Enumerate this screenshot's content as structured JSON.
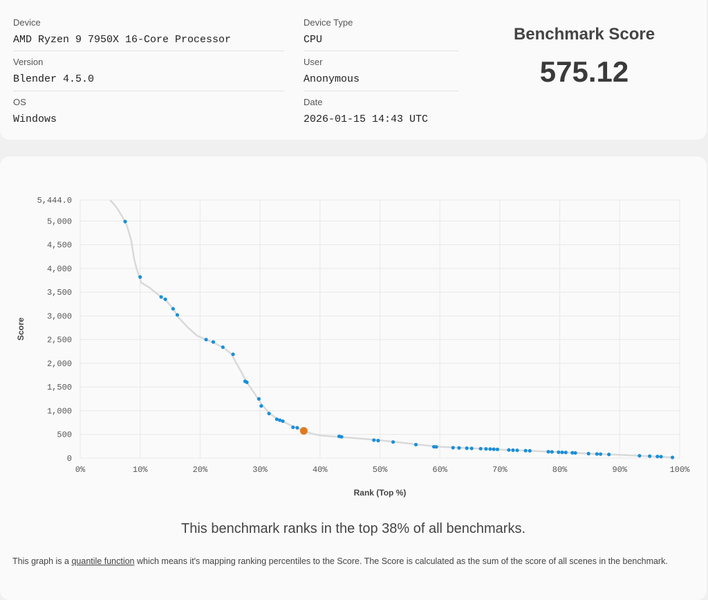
{
  "info": {
    "device": {
      "label": "Device",
      "value": "AMD Ryzen 9 7950X 16-Core Processor"
    },
    "version": {
      "label": "Version",
      "value": "Blender 4.5.0"
    },
    "os": {
      "label": "OS",
      "value": "Windows"
    },
    "device_type": {
      "label": "Device Type",
      "value": "CPU"
    },
    "user": {
      "label": "User",
      "value": "Anonymous"
    },
    "date": {
      "label": "Date",
      "value": "2026-01-15 14:43 UTC"
    }
  },
  "score": {
    "title": "Benchmark Score",
    "value": "575.12"
  },
  "colors": {
    "curve": "#d9d9d9",
    "points": "#1a8fd8",
    "highlight": "#e07b22",
    "grid": "#e8e8e8"
  },
  "chart_data": {
    "type": "scatter",
    "xlabel": "Rank (Top %)",
    "ylabel": "Score",
    "xlim": [
      0,
      100
    ],
    "ylim": [
      0,
      5444
    ],
    "x_ticks": [
      "0%",
      "10%",
      "20%",
      "30%",
      "40%",
      "50%",
      "60%",
      "70%",
      "80%",
      "90%",
      "100%"
    ],
    "y_ticks": [
      "0",
      "500",
      "1,000",
      "1,500",
      "2,000",
      "2,500",
      "3,000",
      "3,500",
      "4,000",
      "4,500",
      "5,000",
      "5,444.0"
    ],
    "y_tick_values": [
      0,
      500,
      1000,
      1500,
      2000,
      2500,
      3000,
      3500,
      4000,
      4500,
      5000,
      5444
    ],
    "grid": true,
    "curve": [
      [
        5,
        5444
      ],
      [
        6,
        5300
      ],
      [
        7,
        5100
      ],
      [
        7.8,
        4900
      ],
      [
        8.5,
        4600
      ],
      [
        9,
        4200
      ],
      [
        9.4,
        4000
      ],
      [
        10.2,
        3700
      ],
      [
        11.5,
        3600
      ],
      [
        13,
        3450
      ],
      [
        14.5,
        3300
      ],
      [
        15.5,
        3150
      ],
      [
        16.5,
        2950
      ],
      [
        18,
        2750
      ],
      [
        19.5,
        2580
      ],
      [
        21,
        2500
      ],
      [
        22.5,
        2420
      ],
      [
        24,
        2320
      ],
      [
        25.2,
        2200
      ],
      [
        26.5,
        1900
      ],
      [
        27.8,
        1600
      ],
      [
        29,
        1380
      ],
      [
        30.2,
        1150
      ],
      [
        31.5,
        950
      ],
      [
        33,
        820
      ],
      [
        35,
        700
      ],
      [
        36.5,
        620
      ],
      [
        37.5,
        575
      ],
      [
        38.5,
        520
      ],
      [
        40,
        480
      ],
      [
        43,
        450
      ],
      [
        48,
        400
      ],
      [
        52,
        350
      ],
      [
        56,
        290
      ],
      [
        60,
        240
      ],
      [
        65,
        210
      ],
      [
        70,
        180
      ],
      [
        75,
        155
      ],
      [
        80,
        125
      ],
      [
        85,
        95
      ],
      [
        90,
        70
      ],
      [
        95,
        40
      ],
      [
        99,
        15
      ]
    ],
    "points": [
      [
        7.5,
        4990
      ],
      [
        10,
        3820
      ],
      [
        13.5,
        3400
      ],
      [
        14.2,
        3350
      ],
      [
        15.5,
        3150
      ],
      [
        16.2,
        3020
      ],
      [
        21,
        2500
      ],
      [
        22.2,
        2450
      ],
      [
        23.8,
        2340
      ],
      [
        25.5,
        2190
      ],
      [
        27.5,
        1620
      ],
      [
        27.8,
        1600
      ],
      [
        29.8,
        1250
      ],
      [
        30.2,
        1100
      ],
      [
        31.5,
        940
      ],
      [
        32.8,
        820
      ],
      [
        33.3,
        800
      ],
      [
        33.8,
        780
      ],
      [
        35.5,
        650
      ],
      [
        36.2,
        640
      ],
      [
        43.2,
        460
      ],
      [
        43.6,
        450
      ],
      [
        49,
        380
      ],
      [
        49.7,
        370
      ],
      [
        52.2,
        340
      ],
      [
        56,
        285
      ],
      [
        59,
        240
      ],
      [
        59.4,
        238
      ],
      [
        62.2,
        220
      ],
      [
        63.2,
        215
      ],
      [
        64.5,
        210
      ],
      [
        65.3,
        205
      ],
      [
        66.8,
        200
      ],
      [
        67.7,
        195
      ],
      [
        68.4,
        192
      ],
      [
        69,
        188
      ],
      [
        69.6,
        185
      ],
      [
        71.5,
        172
      ],
      [
        72.2,
        168
      ],
      [
        72.9,
        165
      ],
      [
        74.3,
        158
      ],
      [
        75,
        155
      ],
      [
        78.1,
        135
      ],
      [
        78.7,
        132
      ],
      [
        79.8,
        125
      ],
      [
        80.4,
        122
      ],
      [
        81,
        120
      ],
      [
        82.1,
        113
      ],
      [
        82.6,
        110
      ],
      [
        84.8,
        95
      ],
      [
        86.2,
        88
      ],
      [
        86.8,
        85
      ],
      [
        88.2,
        78
      ],
      [
        93.3,
        50
      ],
      [
        95,
        42
      ],
      [
        96.3,
        35
      ],
      [
        96.9,
        32
      ],
      [
        98.8,
        15
      ]
    ],
    "highlight": [
      37.3,
      575.12
    ]
  },
  "rank_sentence": "This benchmark ranks in the top 38% of all benchmarks.",
  "footnote": {
    "pre": "This graph is a ",
    "link": "quantile function",
    "post": " which means it's mapping ranking percentiles to the Score. The Score is calculated as the sum of the score of all scenes in the benchmark."
  }
}
